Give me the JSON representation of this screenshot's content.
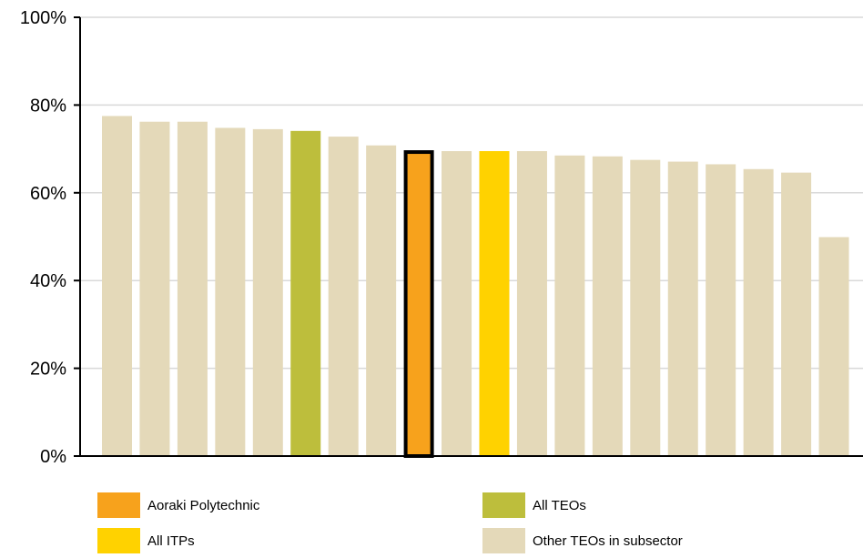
{
  "chart_data": {
    "type": "bar",
    "values": [
      77.5,
      76.2,
      76.2,
      74.8,
      74.5,
      74.1,
      72.8,
      70.8,
      69.7,
      69.5,
      69.5,
      69.5,
      68.5,
      68.3,
      67.5,
      67.1,
      66.5,
      65.4,
      64.6,
      49.9
    ],
    "highlight": [
      "other",
      "other",
      "other",
      "other",
      "other",
      "teos",
      "other",
      "other",
      "aoraki",
      "other",
      "itps",
      "other",
      "other",
      "other",
      "other",
      "other",
      "other",
      "other",
      "other",
      "other"
    ],
    "ylim": [
      0,
      100
    ],
    "yticks": [
      0,
      20,
      40,
      60,
      80,
      100
    ],
    "ytick_labels": [
      "0%",
      "20%",
      "40%",
      "60%",
      "80%",
      "100%"
    ],
    "grid": true,
    "legend_position": "bottom"
  },
  "colors": {
    "aoraki": "#F7A21C",
    "teos": "#BDBE3C",
    "itps": "#FFD200",
    "other": "#E4D9B9",
    "grid": "#D9D9D9",
    "axis": "#000000",
    "highlight_border": "#000000"
  },
  "legend": [
    {
      "key": "aoraki",
      "label": "Aoraki Polytechnic"
    },
    {
      "key": "teos",
      "label": "All TEOs"
    },
    {
      "key": "itps",
      "label": "All ITPs"
    },
    {
      "key": "other",
      "label": "Other TEOs in subsector"
    }
  ]
}
